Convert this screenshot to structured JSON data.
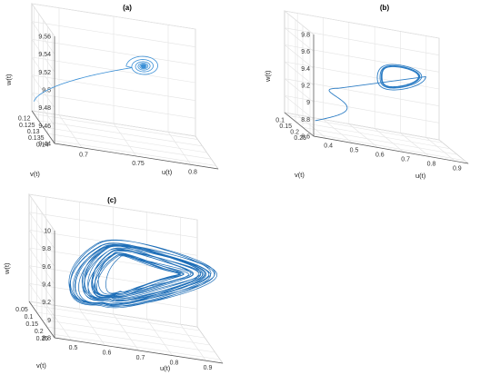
{
  "chart_data": [
    {
      "type": "line",
      "title": "(a)",
      "xlabel": "u(t)",
      "ylabel": "v(t)",
      "zlabel": "w(t)",
      "xlim": [
        0.65,
        0.8
      ],
      "ylim": [
        0.12,
        0.145
      ],
      "zlim": [
        9.44,
        9.56
      ],
      "xticks": [
        "0.7",
        "0.75",
        "0.8"
      ],
      "yticks": [
        "0.12",
        "0.125",
        "0.13",
        "0.135",
        "0.14"
      ],
      "zticks": [
        "9.44",
        "9.46",
        "9.48",
        "9.5",
        "9.52",
        "9.54",
        "9.56"
      ],
      "grid": true,
      "line_color": "#3a8fd6",
      "series": [
        {
          "behavior": "spiral converging to equilibrium",
          "start": {
            "u": 0.65,
            "v": 0.145,
            "w": 9.45
          },
          "equilibrium": {
            "u": 0.74,
            "v": 0.125,
            "w": 9.51
          }
        }
      ]
    },
    {
      "type": "line",
      "title": "(b)",
      "xlabel": "u(t)",
      "ylabel": "v(t)",
      "zlabel": "w(t)",
      "xlim": [
        0.4,
        0.9
      ],
      "ylim": [
        0.1,
        0.25
      ],
      "zlim": [
        8.6,
        9.8
      ],
      "xticks": [
        "0.4",
        "0.5",
        "0.6",
        "0.7",
        "0.8",
        "0.9"
      ],
      "yticks": [
        "0.1",
        "0.15",
        "0.2",
        "0.25"
      ],
      "zticks": [
        "8.6",
        "8.8",
        "9",
        "9.2",
        "9.4",
        "9.6",
        "9.8"
      ],
      "grid": true,
      "line_color": "#2b7cc4",
      "series": [
        {
          "behavior": "transient converging to limit cycle"
        }
      ]
    },
    {
      "type": "line",
      "title": "(c)",
      "xlabel": "u(t)",
      "ylabel": "v(t)",
      "zlabel": "w(t)",
      "xlim": [
        0.5,
        0.9
      ],
      "ylim": [
        0.05,
        0.25
      ],
      "zlim": [
        8.8,
        10
      ],
      "xticks": [
        "0.5",
        "0.6",
        "0.7",
        "0.8",
        "0.9"
      ],
      "yticks": [
        "0.05",
        "0.1",
        "0.15",
        "0.2",
        "0.25"
      ],
      "zticks": [
        "8.8",
        "9",
        "9.2",
        "9.4",
        "9.6",
        "9.8",
        "10"
      ],
      "grid": true,
      "line_color": "#1f6fb8",
      "series": [
        {
          "behavior": "chaotic attractor"
        }
      ]
    }
  ]
}
